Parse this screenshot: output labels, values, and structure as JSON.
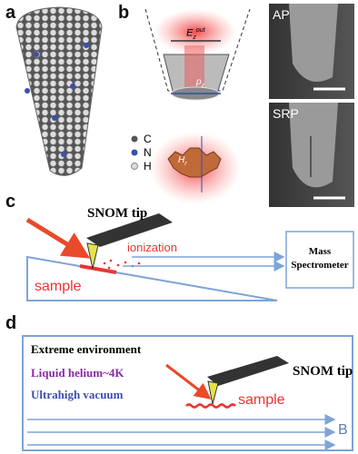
{
  "panels": {
    "a": {
      "label": "a",
      "legend": [
        "C",
        "N",
        "H"
      ]
    },
    "b": {
      "label": "b",
      "field_label": {
        "base": "E",
        "sub": "z",
        "sup": "out"
      },
      "dipole_label": {
        "base": "p",
        "sub": "z"
      },
      "magnetic_label": {
        "base": "H",
        "sub": "r"
      },
      "sem_images": [
        "AP",
        "SRP"
      ]
    },
    "c": {
      "label": "c",
      "tip": "SNOM tip",
      "process": "ionization",
      "sample": "sample",
      "detector": "Mass Spectrometer"
    },
    "d": {
      "label": "d",
      "heading": "Extreme environment",
      "conditions": [
        "Liquid helium~4K",
        "Ultrahigh vacuum"
      ],
      "tip": "SNOM tip",
      "sample": "sample",
      "field": "B"
    }
  }
}
